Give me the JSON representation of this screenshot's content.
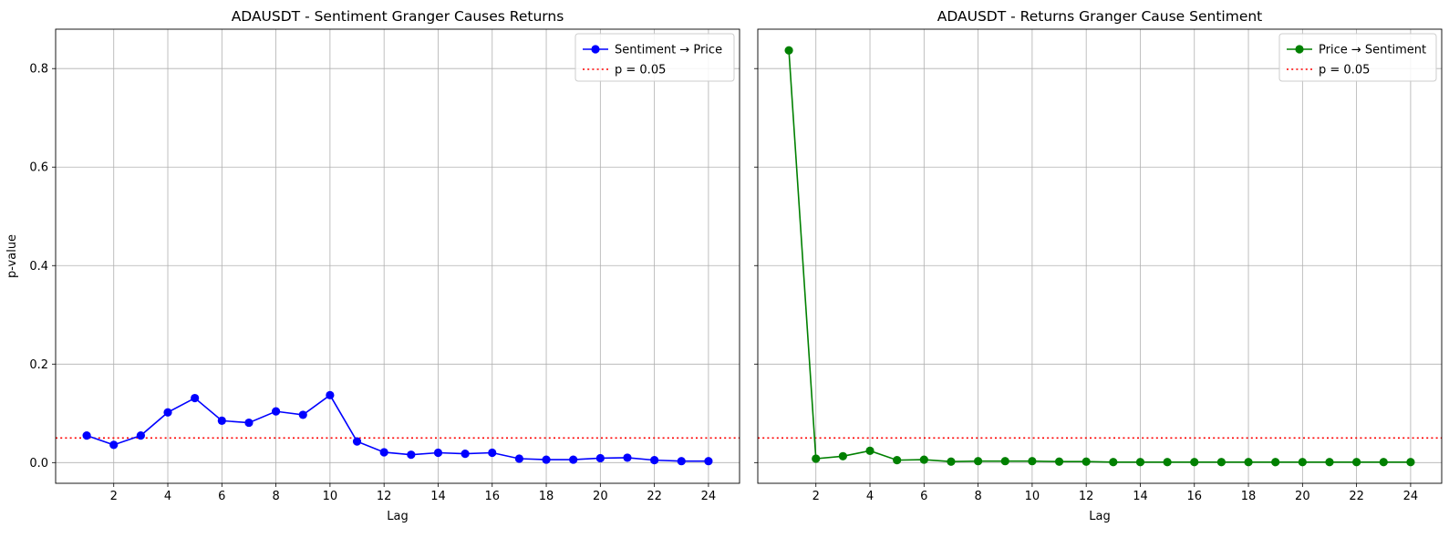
{
  "chart_data": [
    {
      "type": "line",
      "title": "ADAUSDT - Sentiment Granger Causes Returns",
      "xlabel": "Lag",
      "ylabel": "p-value",
      "x": [
        1,
        2,
        3,
        4,
        5,
        6,
        7,
        8,
        9,
        10,
        11,
        12,
        13,
        14,
        15,
        16,
        17,
        18,
        19,
        20,
        21,
        22,
        23,
        24
      ],
      "xticks": [
        2,
        4,
        6,
        8,
        10,
        12,
        14,
        16,
        18,
        20,
        22,
        24
      ],
      "xtick_labels": [
        "2",
        "4",
        "6",
        "8",
        "10",
        "12",
        "14",
        "16",
        "18",
        "20",
        "22",
        "24"
      ],
      "yticks": [
        0.0,
        0.2,
        0.4,
        0.6,
        0.8
      ],
      "ytick_labels": [
        "0.0",
        "0.2",
        "0.4",
        "0.6",
        "0.8"
      ],
      "xlim": [
        -0.15,
        25.15
      ],
      "ylim": [
        -0.042,
        0.88
      ],
      "grid": true,
      "legend_position": "top-right",
      "series": [
        {
          "name": "Sentiment → Price",
          "color": "#0000ff",
          "marker": "circle",
          "values": [
            0.055,
            0.036,
            0.055,
            0.102,
            0.131,
            0.085,
            0.081,
            0.104,
            0.097,
            0.137,
            0.043,
            0.021,
            0.016,
            0.02,
            0.018,
            0.02,
            0.008,
            0.006,
            0.006,
            0.009,
            0.01,
            0.005,
            0.003,
            0.003
          ]
        }
      ],
      "reference_lines": [
        {
          "name": "p = 0.05",
          "y": 0.05,
          "color": "#ff0000",
          "style": "dotted"
        }
      ]
    },
    {
      "type": "line",
      "title": "ADAUSDT - Returns Granger Cause Sentiment",
      "xlabel": "Lag",
      "ylabel": "",
      "x": [
        1,
        2,
        3,
        4,
        5,
        6,
        7,
        8,
        9,
        10,
        11,
        12,
        13,
        14,
        15,
        16,
        17,
        18,
        19,
        20,
        21,
        22,
        23,
        24
      ],
      "xticks": [
        2,
        4,
        6,
        8,
        10,
        12,
        14,
        16,
        18,
        20,
        22,
        24
      ],
      "xtick_labels": [
        "2",
        "4",
        "6",
        "8",
        "10",
        "12",
        "14",
        "16",
        "18",
        "20",
        "22",
        "24"
      ],
      "yticks": [
        0.0,
        0.2,
        0.4,
        0.6,
        0.8
      ],
      "ytick_labels": [
        "",
        "",
        "",
        "",
        ""
      ],
      "xlim": [
        -0.15,
        25.15
      ],
      "ylim": [
        -0.042,
        0.88
      ],
      "grid": true,
      "legend_position": "top-right",
      "series": [
        {
          "name": "Price → Sentiment",
          "color": "#008000",
          "marker": "circle",
          "values": [
            0.837,
            0.008,
            0.013,
            0.024,
            0.005,
            0.006,
            0.002,
            0.003,
            0.003,
            0.003,
            0.002,
            0.002,
            0.001,
            0.001,
            0.001,
            0.001,
            0.001,
            0.001,
            0.001,
            0.001,
            0.001,
            0.001,
            0.001,
            0.001
          ]
        }
      ],
      "reference_lines": [
        {
          "name": "p = 0.05",
          "y": 0.05,
          "color": "#ff0000",
          "style": "dotted"
        }
      ]
    }
  ]
}
